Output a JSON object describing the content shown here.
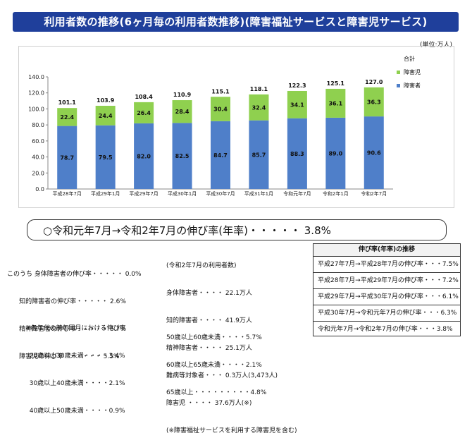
{
  "title": "利用者数の推移(6ヶ月毎の利用者数推移)(障害福祉サービスと障害児サービス)",
  "unit_label": "(単位:万人)",
  "colors": {
    "disabled": "#4f7fc9",
    "children": "#8fd04f"
  },
  "chart_data": {
    "type": "bar",
    "stacked": true,
    "categories": [
      "平成28年7月",
      "平成29年1月",
      "平成29年7月",
      "平成30年1月",
      "平成30年7月",
      "平成31年1月",
      "令和元年7月",
      "令和2年1月",
      "令和2年7月"
    ],
    "series": [
      {
        "name": "障害者",
        "values": [
          78.7,
          79.5,
          82.0,
          82.5,
          84.7,
          85.7,
          88.3,
          89.0,
          90.6
        ]
      },
      {
        "name": "障害児",
        "values": [
          22.4,
          24.4,
          26.4,
          28.4,
          30.4,
          32.4,
          34.1,
          36.1,
          36.3
        ]
      }
    ],
    "totals": [
      101.1,
      103.9,
      108.4,
      110.9,
      115.1,
      118.1,
      122.3,
      125.1,
      127.0
    ],
    "totals_name": "合計",
    "total_labels": [
      "101.1",
      "103.9",
      "108.4",
      "110.9",
      "115.1",
      "118.1",
      "122.3",
      "125.1",
      "127.0"
    ],
    "series_labels": [
      [
        "78.7",
        "79.5",
        "82.0",
        "82.5",
        "84.7",
        "85.7",
        "88.3",
        "89.0",
        "90.6"
      ],
      [
        "22.4",
        "24.4",
        "26.4",
        "28.4",
        "30.4",
        "32.4",
        "34.1",
        "36.1",
        "36.3"
      ]
    ],
    "ylim": [
      0,
      140
    ],
    "yticks": [
      "0.0",
      "20.0",
      "40.0",
      "60.0",
      "80.0",
      "100.0",
      "120.0",
      "140.0"
    ],
    "grid": false,
    "legend": "right"
  },
  "growth": {
    "headline": "○令和元年7月→令和2年7月の伸び率(年率)・・・・・ 3.8%",
    "breakdown_lines": [
      "このうち 身体障害者の伸び率・・・・・ 0.0%",
      "      知的障害者の伸び率・・・・・ 2.6%",
      "      精神障害者の伸び率・・・・・ 6.7%",
      "      障害児の伸び率   ・・・・・ 5.5%"
    ],
    "users_lines": [
      "(令和2年7月の利用者数)",
      "身体障害者・・・・ 22.1万人",
      "知的障害者・・・・ 41.9万人",
      "精神障害者・・・・ 25.1万人",
      "難病等対象者・・・ 0.3万人(3,473人)",
      "障害児 ・・・・ 37.6万人(※)",
      "(※障害福祉サービスを利用する障害児を含む)"
    ],
    "age_lines_left": [
      "※各年代の前年同月における伸び率",
      "  20歳以上30歳未満・・・・3.4%",
      "  30歳以上40歳未満・・・・2.1%",
      "  40歳以上50歳未満・・・・0.9%"
    ],
    "age_lines_right": [
      "50歳以上60歳未満・・・・5.7%",
      "60歳以上65歳未満・・・・2.1%",
      "65歳以上・・・・・・・・・4.8%"
    ]
  },
  "trend": {
    "header": "伸び率(年率)の推移",
    "rows": [
      "平成27年7月→平成28年7月の伸び率・・・7.5%",
      "平成28年7月→平成29年7月の伸び率・・・7.2%",
      "平成29年7月→平成30年7月の伸び率・・・6.1%",
      "平成30年7月→令和元年7月の伸び率・・・6.3%",
      "令和元年7月→令和2年7月の伸び率・・・3.8%"
    ]
  }
}
